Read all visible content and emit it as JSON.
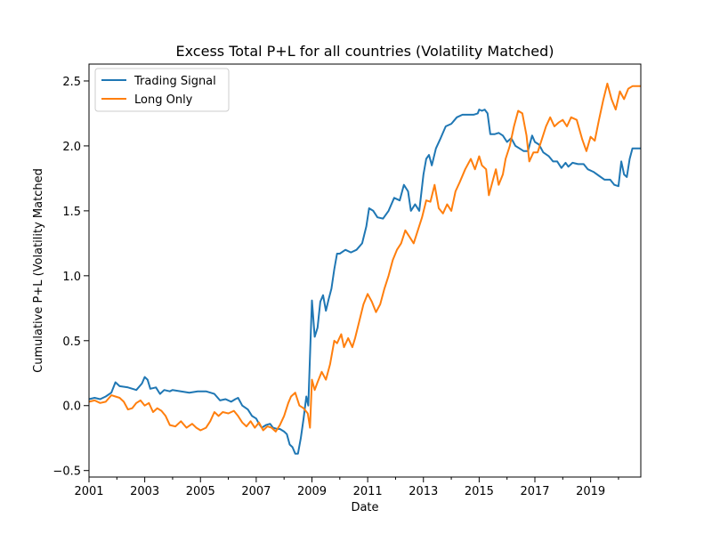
{
  "chart_data": {
    "type": "line",
    "title": "Excess Total P+L for all countries (Volatility Matched)",
    "xlabel": "Date",
    "ylabel": "Cumulative P+L (Volatility Matched",
    "xlim": [
      2001.0,
      2020.8
    ],
    "ylim": [
      -0.55,
      2.63
    ],
    "x_ticks": [
      {
        "value": 2001,
        "label": "2001"
      },
      {
        "value": 2003,
        "label": "2003"
      },
      {
        "value": 2005,
        "label": "2005"
      },
      {
        "value": 2007,
        "label": "2007"
      },
      {
        "value": 2009,
        "label": "2009"
      },
      {
        "value": 2011,
        "label": "2011"
      },
      {
        "value": 2013,
        "label": "2013"
      },
      {
        "value": 2015,
        "label": "2015"
      },
      {
        "value": 2017,
        "label": "2017"
      },
      {
        "value": 2019,
        "label": "2019"
      }
    ],
    "y_ticks": [
      {
        "value": -0.5,
        "label": "−0.5"
      },
      {
        "value": 0.0,
        "label": "0.0"
      },
      {
        "value": 0.5,
        "label": "0.5"
      },
      {
        "value": 1.0,
        "label": "1.0"
      },
      {
        "value": 1.5,
        "label": "1.5"
      },
      {
        "value": 2.0,
        "label": "2.0"
      },
      {
        "value": 2.5,
        "label": "2.5"
      }
    ],
    "legend_position": "top-left",
    "grid": false,
    "series": [
      {
        "name": "Trading Signal",
        "color": "#1f77b4",
        "points": [
          [
            2001.0,
            0.05
          ],
          [
            2001.2,
            0.06
          ],
          [
            2001.4,
            0.05
          ],
          [
            2001.6,
            0.07
          ],
          [
            2001.8,
            0.1
          ],
          [
            2001.95,
            0.18
          ],
          [
            2002.1,
            0.15
          ],
          [
            2002.4,
            0.14
          ],
          [
            2002.7,
            0.12
          ],
          [
            2002.9,
            0.17
          ],
          [
            2003.0,
            0.22
          ],
          [
            2003.1,
            0.2
          ],
          [
            2003.2,
            0.13
          ],
          [
            2003.4,
            0.14
          ],
          [
            2003.55,
            0.09
          ],
          [
            2003.7,
            0.12
          ],
          [
            2003.9,
            0.11
          ],
          [
            2004.0,
            0.12
          ],
          [
            2004.3,
            0.11
          ],
          [
            2004.6,
            0.1
          ],
          [
            2004.9,
            0.11
          ],
          [
            2005.2,
            0.11
          ],
          [
            2005.5,
            0.09
          ],
          [
            2005.7,
            0.04
          ],
          [
            2005.9,
            0.05
          ],
          [
            2006.1,
            0.03
          ],
          [
            2006.25,
            0.05
          ],
          [
            2006.35,
            0.06
          ],
          [
            2006.5,
            0.0
          ],
          [
            2006.7,
            -0.03
          ],
          [
            2006.85,
            -0.08
          ],
          [
            2007.0,
            -0.1
          ],
          [
            2007.1,
            -0.14
          ],
          [
            2007.2,
            -0.17
          ],
          [
            2007.35,
            -0.15
          ],
          [
            2007.5,
            -0.14
          ],
          [
            2007.6,
            -0.17
          ],
          [
            2007.75,
            -0.18
          ],
          [
            2007.85,
            -0.18
          ],
          [
            2008.0,
            -0.2
          ],
          [
            2008.1,
            -0.22
          ],
          [
            2008.2,
            -0.3
          ],
          [
            2008.3,
            -0.32
          ],
          [
            2008.4,
            -0.37
          ],
          [
            2008.5,
            -0.37
          ],
          [
            2008.6,
            -0.25
          ],
          [
            2008.7,
            -0.1
          ],
          [
            2008.8,
            0.07
          ],
          [
            2008.87,
            0.0
          ],
          [
            2008.95,
            0.5
          ],
          [
            2009.0,
            0.81
          ],
          [
            2009.1,
            0.53
          ],
          [
            2009.2,
            0.6
          ],
          [
            2009.3,
            0.8
          ],
          [
            2009.4,
            0.85
          ],
          [
            2009.5,
            0.73
          ],
          [
            2009.6,
            0.82
          ],
          [
            2009.7,
            0.9
          ],
          [
            2009.8,
            1.05
          ],
          [
            2009.9,
            1.17
          ],
          [
            2010.0,
            1.17
          ],
          [
            2010.2,
            1.2
          ],
          [
            2010.4,
            1.18
          ],
          [
            2010.6,
            1.2
          ],
          [
            2010.8,
            1.25
          ],
          [
            2010.95,
            1.38
          ],
          [
            2011.05,
            1.52
          ],
          [
            2011.2,
            1.5
          ],
          [
            2011.35,
            1.45
          ],
          [
            2011.55,
            1.44
          ],
          [
            2011.75,
            1.5
          ],
          [
            2011.95,
            1.6
          ],
          [
            2012.15,
            1.58
          ],
          [
            2012.3,
            1.7
          ],
          [
            2012.45,
            1.65
          ],
          [
            2012.55,
            1.5
          ],
          [
            2012.7,
            1.55
          ],
          [
            2012.85,
            1.5
          ],
          [
            2013.0,
            1.78
          ],
          [
            2013.1,
            1.9
          ],
          [
            2013.2,
            1.93
          ],
          [
            2013.3,
            1.85
          ],
          [
            2013.45,
            1.98
          ],
          [
            2013.6,
            2.05
          ],
          [
            2013.8,
            2.15
          ],
          [
            2014.0,
            2.17
          ],
          [
            2014.2,
            2.22
          ],
          [
            2014.4,
            2.24
          ],
          [
            2014.6,
            2.24
          ],
          [
            2014.8,
            2.24
          ],
          [
            2014.95,
            2.25
          ],
          [
            2015.0,
            2.28
          ],
          [
            2015.1,
            2.27
          ],
          [
            2015.2,
            2.28
          ],
          [
            2015.3,
            2.25
          ],
          [
            2015.4,
            2.09
          ],
          [
            2015.55,
            2.09
          ],
          [
            2015.7,
            2.1
          ],
          [
            2015.85,
            2.08
          ],
          [
            2016.0,
            2.03
          ],
          [
            2016.15,
            2.06
          ],
          [
            2016.3,
            2.0
          ],
          [
            2016.45,
            1.98
          ],
          [
            2016.6,
            1.96
          ],
          [
            2016.75,
            1.96
          ],
          [
            2016.9,
            2.08
          ],
          [
            2017.0,
            2.03
          ],
          [
            2017.15,
            2.01
          ],
          [
            2017.3,
            1.95
          ],
          [
            2017.5,
            1.92
          ],
          [
            2017.65,
            1.88
          ],
          [
            2017.8,
            1.88
          ],
          [
            2017.95,
            1.83
          ],
          [
            2018.1,
            1.87
          ],
          [
            2018.2,
            1.84
          ],
          [
            2018.35,
            1.87
          ],
          [
            2018.55,
            1.86
          ],
          [
            2018.75,
            1.86
          ],
          [
            2018.9,
            1.82
          ],
          [
            2019.1,
            1.8
          ],
          [
            2019.3,
            1.77
          ],
          [
            2019.5,
            1.74
          ],
          [
            2019.7,
            1.74
          ],
          [
            2019.85,
            1.7
          ],
          [
            2020.0,
            1.69
          ],
          [
            2020.1,
            1.88
          ],
          [
            2020.2,
            1.78
          ],
          [
            2020.3,
            1.76
          ],
          [
            2020.4,
            1.9
          ],
          [
            2020.5,
            1.98
          ],
          [
            2020.8,
            1.98
          ]
        ]
      },
      {
        "name": "Long Only",
        "color": "#ff7f0e",
        "points": [
          [
            2001.0,
            0.03
          ],
          [
            2001.2,
            0.04
          ],
          [
            2001.4,
            0.02
          ],
          [
            2001.6,
            0.03
          ],
          [
            2001.8,
            0.08
          ],
          [
            2001.95,
            0.07
          ],
          [
            2002.1,
            0.06
          ],
          [
            2002.25,
            0.03
          ],
          [
            2002.4,
            -0.03
          ],
          [
            2002.55,
            -0.02
          ],
          [
            2002.7,
            0.02
          ],
          [
            2002.85,
            0.04
          ],
          [
            2003.0,
            0.0
          ],
          [
            2003.15,
            0.02
          ],
          [
            2003.3,
            -0.05
          ],
          [
            2003.45,
            -0.02
          ],
          [
            2003.6,
            -0.04
          ],
          [
            2003.75,
            -0.08
          ],
          [
            2003.9,
            -0.15
          ],
          [
            2004.1,
            -0.16
          ],
          [
            2004.3,
            -0.12
          ],
          [
            2004.5,
            -0.17
          ],
          [
            2004.7,
            -0.14
          ],
          [
            2004.85,
            -0.17
          ],
          [
            2005.0,
            -0.19
          ],
          [
            2005.2,
            -0.17
          ],
          [
            2005.35,
            -0.12
          ],
          [
            2005.5,
            -0.05
          ],
          [
            2005.65,
            -0.08
          ],
          [
            2005.8,
            -0.05
          ],
          [
            2006.0,
            -0.06
          ],
          [
            2006.2,
            -0.04
          ],
          [
            2006.35,
            -0.08
          ],
          [
            2006.5,
            -0.13
          ],
          [
            2006.65,
            -0.16
          ],
          [
            2006.8,
            -0.12
          ],
          [
            2006.95,
            -0.17
          ],
          [
            2007.1,
            -0.13
          ],
          [
            2007.25,
            -0.19
          ],
          [
            2007.4,
            -0.16
          ],
          [
            2007.55,
            -0.17
          ],
          [
            2007.7,
            -0.2
          ],
          [
            2007.85,
            -0.15
          ],
          [
            2008.0,
            -0.08
          ],
          [
            2008.15,
            0.02
          ],
          [
            2008.25,
            0.07
          ],
          [
            2008.4,
            0.1
          ],
          [
            2008.55,
            0.0
          ],
          [
            2008.7,
            -0.02
          ],
          [
            2008.85,
            -0.06
          ],
          [
            2008.93,
            -0.17
          ],
          [
            2009.0,
            0.2
          ],
          [
            2009.1,
            0.12
          ],
          [
            2009.2,
            0.18
          ],
          [
            2009.35,
            0.26
          ],
          [
            2009.5,
            0.2
          ],
          [
            2009.65,
            0.32
          ],
          [
            2009.8,
            0.5
          ],
          [
            2009.9,
            0.48
          ],
          [
            2010.05,
            0.55
          ],
          [
            2010.15,
            0.45
          ],
          [
            2010.3,
            0.52
          ],
          [
            2010.45,
            0.45
          ],
          [
            2010.55,
            0.52
          ],
          [
            2010.7,
            0.65
          ],
          [
            2010.85,
            0.78
          ],
          [
            2011.0,
            0.86
          ],
          [
            2011.15,
            0.8
          ],
          [
            2011.3,
            0.72
          ],
          [
            2011.45,
            0.78
          ],
          [
            2011.6,
            0.9
          ],
          [
            2011.75,
            1.0
          ],
          [
            2011.9,
            1.12
          ],
          [
            2012.05,
            1.2
          ],
          [
            2012.2,
            1.25
          ],
          [
            2012.35,
            1.35
          ],
          [
            2012.5,
            1.3
          ],
          [
            2012.65,
            1.25
          ],
          [
            2012.8,
            1.35
          ],
          [
            2012.95,
            1.45
          ],
          [
            2013.1,
            1.58
          ],
          [
            2013.25,
            1.57
          ],
          [
            2013.4,
            1.7
          ],
          [
            2013.55,
            1.52
          ],
          [
            2013.7,
            1.48
          ],
          [
            2013.85,
            1.55
          ],
          [
            2014.0,
            1.5
          ],
          [
            2014.15,
            1.65
          ],
          [
            2014.3,
            1.72
          ],
          [
            2014.5,
            1.82
          ],
          [
            2014.7,
            1.9
          ],
          [
            2014.85,
            1.82
          ],
          [
            2015.0,
            1.92
          ],
          [
            2015.1,
            1.85
          ],
          [
            2015.25,
            1.82
          ],
          [
            2015.35,
            1.62
          ],
          [
            2015.5,
            1.74
          ],
          [
            2015.6,
            1.82
          ],
          [
            2015.7,
            1.7
          ],
          [
            2015.85,
            1.78
          ],
          [
            2015.95,
            1.9
          ],
          [
            2016.1,
            2.0
          ],
          [
            2016.25,
            2.15
          ],
          [
            2016.4,
            2.27
          ],
          [
            2016.55,
            2.25
          ],
          [
            2016.7,
            2.08
          ],
          [
            2016.8,
            1.88
          ],
          [
            2016.95,
            1.95
          ],
          [
            2017.1,
            1.95
          ],
          [
            2017.25,
            2.05
          ],
          [
            2017.4,
            2.15
          ],
          [
            2017.55,
            2.22
          ],
          [
            2017.7,
            2.15
          ],
          [
            2017.85,
            2.18
          ],
          [
            2018.0,
            2.2
          ],
          [
            2018.15,
            2.15
          ],
          [
            2018.3,
            2.22
          ],
          [
            2018.5,
            2.2
          ],
          [
            2018.7,
            2.05
          ],
          [
            2018.85,
            1.96
          ],
          [
            2019.0,
            2.07
          ],
          [
            2019.15,
            2.04
          ],
          [
            2019.3,
            2.2
          ],
          [
            2019.45,
            2.35
          ],
          [
            2019.6,
            2.48
          ],
          [
            2019.75,
            2.36
          ],
          [
            2019.9,
            2.28
          ],
          [
            2020.05,
            2.42
          ],
          [
            2020.2,
            2.36
          ],
          [
            2020.35,
            2.44
          ],
          [
            2020.5,
            2.46
          ],
          [
            2020.8,
            2.46
          ]
        ]
      }
    ]
  }
}
